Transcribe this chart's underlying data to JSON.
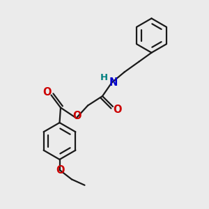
{
  "bg_color": "#ebebeb",
  "bond_color": "#1a1a1a",
  "oxygen_color": "#cc0000",
  "nitrogen_color": "#0000cc",
  "hydrogen_color": "#008080",
  "lw": 1.6,
  "fig_width": 3.0,
  "fig_height": 3.0,
  "dpi": 100,
  "xlim": [
    0,
    10
  ],
  "ylim": [
    0,
    10
  ]
}
